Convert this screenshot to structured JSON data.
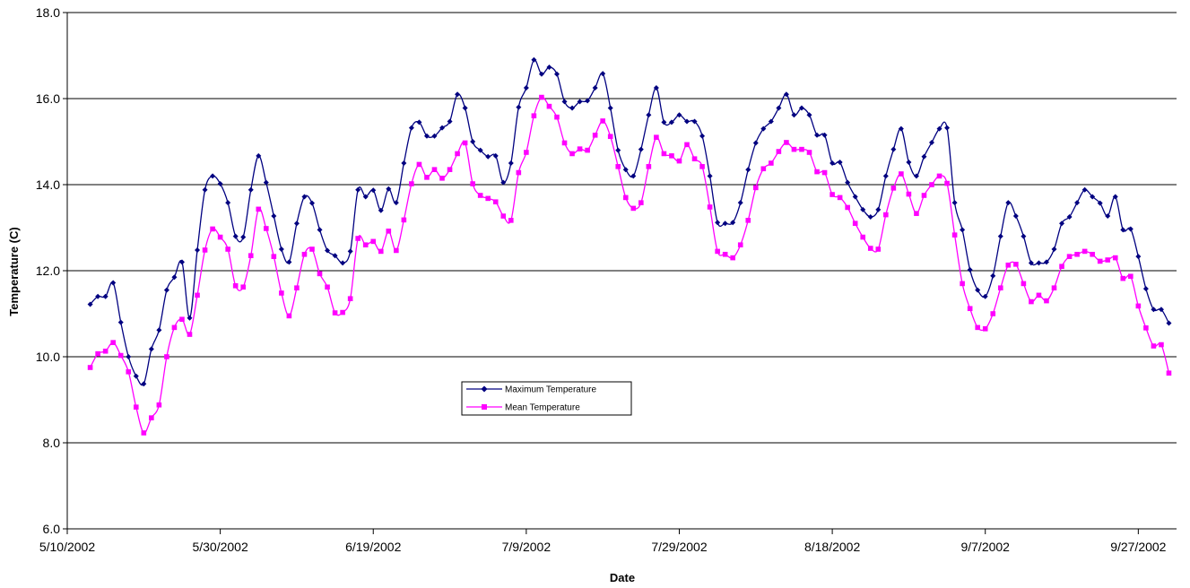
{
  "chart_data": {
    "type": "line",
    "title": "",
    "xlabel": "Date",
    "ylabel": "Temperature (C)",
    "ylim": [
      6.0,
      18.0
    ],
    "yticks": [
      "6.0",
      "8.0",
      "10.0",
      "12.0",
      "14.0",
      "16.0",
      "18.0"
    ],
    "xlim": [
      "2002-05-10",
      "2002-10-02"
    ],
    "xticks": [
      "5/10/2002",
      "5/30/2002",
      "6/19/2002",
      "7/9/2002",
      "7/29/2002",
      "8/18/2002",
      "9/7/2002",
      "9/27/2002"
    ],
    "x_start_date": "2002-05-13",
    "grid": "horizontal",
    "legend_position": "center",
    "series": [
      {
        "name": "Maximum Temperature",
        "color": "#000080",
        "marker": "diamond",
        "values": [
          11.22,
          11.4,
          11.4,
          11.72,
          10.8,
          10.0,
          9.55,
          9.37,
          10.18,
          10.62,
          11.55,
          11.85,
          12.2,
          10.9,
          12.48,
          13.88,
          14.2,
          14.02,
          13.58,
          12.8,
          12.78,
          13.88,
          14.67,
          14.05,
          13.27,
          12.5,
          12.2,
          13.1,
          13.72,
          13.57,
          12.95,
          12.47,
          12.35,
          12.18,
          12.45,
          13.88,
          13.72,
          13.87,
          13.4,
          13.9,
          13.58,
          14.5,
          15.32,
          15.45,
          15.13,
          15.13,
          15.32,
          15.47,
          16.1,
          15.78,
          15.0,
          14.8,
          14.65,
          14.67,
          14.05,
          14.5,
          15.8,
          16.25,
          16.9,
          16.57,
          16.73,
          16.57,
          15.93,
          15.78,
          15.93,
          15.95,
          16.25,
          16.58,
          15.78,
          14.8,
          14.35,
          14.2,
          14.82,
          15.62,
          16.25,
          15.45,
          15.45,
          15.62,
          15.47,
          15.47,
          15.13,
          14.2,
          13.12,
          13.1,
          13.12,
          13.58,
          14.35,
          14.97,
          15.3,
          15.47,
          15.78,
          16.1,
          15.62,
          15.78,
          15.62,
          15.15,
          15.15,
          14.5,
          14.52,
          14.05,
          13.72,
          13.42,
          13.25,
          13.42,
          14.2,
          14.82,
          15.3,
          14.52,
          14.2,
          14.65,
          14.98,
          15.3,
          15.32,
          13.58,
          12.95,
          12.02,
          11.55,
          11.4,
          11.88,
          12.8,
          13.58,
          13.27,
          12.8,
          12.18,
          12.18,
          12.2,
          12.5,
          13.1,
          13.25,
          13.58,
          13.88,
          13.72,
          13.57,
          13.27,
          13.72,
          12.95,
          12.97,
          12.33,
          11.58,
          11.1,
          11.1,
          10.78
        ]
      },
      {
        "name": "Mean Temperature",
        "color": "#FF00FF",
        "marker": "square",
        "values": [
          9.75,
          10.07,
          10.13,
          10.33,
          10.03,
          9.65,
          8.83,
          8.23,
          8.58,
          8.88,
          10.0,
          10.68,
          10.87,
          10.52,
          11.43,
          12.48,
          12.97,
          12.78,
          12.5,
          11.65,
          11.62,
          12.35,
          13.43,
          12.98,
          12.33,
          11.48,
          10.95,
          11.6,
          12.38,
          12.5,
          11.93,
          11.62,
          11.02,
          11.03,
          11.35,
          12.75,
          12.6,
          12.68,
          12.45,
          12.92,
          12.47,
          13.18,
          14.02,
          14.47,
          14.17,
          14.35,
          14.15,
          14.35,
          14.72,
          14.97,
          14.02,
          13.75,
          13.68,
          13.6,
          13.27,
          13.17,
          14.28,
          14.75,
          15.6,
          16.03,
          15.82,
          15.57,
          14.97,
          14.72,
          14.83,
          14.8,
          15.15,
          15.48,
          15.12,
          14.42,
          13.7,
          13.45,
          13.58,
          14.42,
          15.1,
          14.72,
          14.67,
          14.55,
          14.93,
          14.6,
          14.42,
          13.48,
          12.45,
          12.38,
          12.3,
          12.6,
          13.17,
          13.93,
          14.37,
          14.5,
          14.77,
          14.98,
          14.82,
          14.82,
          14.75,
          14.3,
          14.28,
          13.77,
          13.7,
          13.47,
          13.1,
          12.78,
          12.52,
          12.5,
          13.3,
          13.92,
          14.25,
          13.78,
          13.33,
          13.75,
          14.0,
          14.2,
          14.03,
          12.83,
          11.7,
          11.12,
          10.68,
          10.65,
          11.0,
          11.6,
          12.13,
          12.15,
          11.7,
          11.28,
          11.43,
          11.3,
          11.6,
          12.1,
          12.33,
          12.38,
          12.45,
          12.38,
          12.22,
          12.25,
          12.3,
          11.82,
          11.87,
          11.18,
          10.67,
          10.25,
          10.28,
          9.62
        ]
      }
    ]
  }
}
